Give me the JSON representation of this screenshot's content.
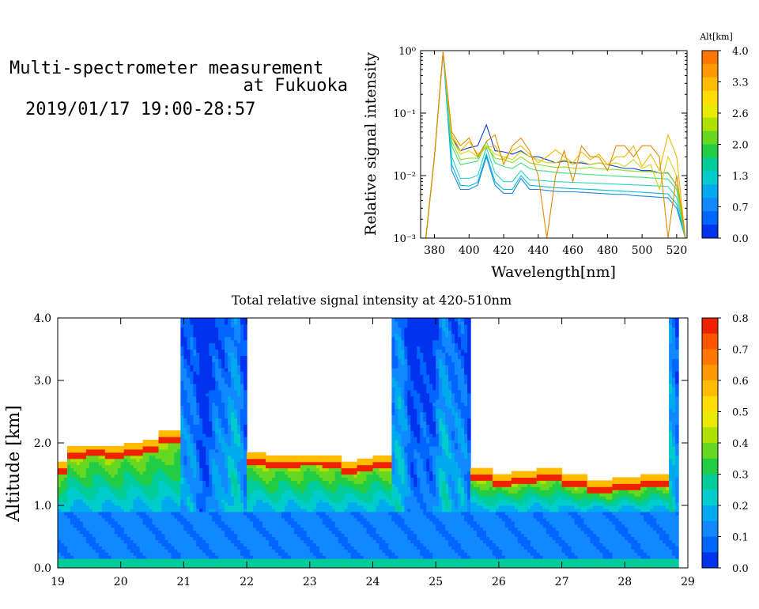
{
  "header": {
    "title_line1": "Multi-spectrometer measurement",
    "title_line2": "at Fukuoka",
    "period": "2019/01/17 19:00-28:57"
  },
  "chart_data": [
    {
      "type": "line",
      "title": "",
      "xlabel": "Wavelength[nm]",
      "ylabel": "Relative signal intensity",
      "yscale": "log",
      "xlim": [
        372,
        526
      ],
      "ylim": [
        0.001,
        1
      ],
      "xticks": [
        "380",
        "400",
        "420",
        "440",
        "460",
        "480",
        "500",
        "520"
      ],
      "yticks": [
        "10⁻³",
        "10⁻²",
        "10⁻¹",
        "10⁰"
      ],
      "x": [
        375,
        380,
        385,
        390,
        395,
        400,
        405,
        410,
        415,
        420,
        425,
        430,
        435,
        440,
        445,
        450,
        455,
        460,
        465,
        470,
        475,
        480,
        485,
        490,
        495,
        500,
        505,
        510,
        515,
        520,
        525
      ],
      "series": [
        {
          "color": "#0a3ad8",
          "values": [
            0.001,
            0.02,
            0.95,
            0.04,
            0.025,
            0.028,
            0.03,
            0.065,
            0.025,
            0.024,
            0.022,
            0.025,
            0.02,
            0.02,
            0.018,
            0.016,
            0.017,
            0.016,
            0.016,
            0.015,
            0.016,
            0.015,
            0.014,
            0.013,
            0.013,
            0.012,
            0.012,
            0.011,
            0.011,
            0.007,
            0.001
          ]
        },
        {
          "color": "#1e88e5",
          "values": [
            0.001,
            0.02,
            0.95,
            0.012,
            0.006,
            0.006,
            0.007,
            0.02,
            0.007,
            0.0052,
            0.0052,
            0.009,
            0.006,
            0.006,
            0.0058,
            0.0056,
            0.0055,
            0.0055,
            0.0054,
            0.0053,
            0.0052,
            0.0051,
            0.005,
            0.005,
            0.0048,
            0.0047,
            0.0046,
            0.0045,
            0.0044,
            0.003,
            0.001
          ]
        },
        {
          "color": "#00bcd4",
          "values": [
            0.001,
            0.02,
            0.95,
            0.015,
            0.007,
            0.0068,
            0.0078,
            0.022,
            0.008,
            0.006,
            0.006,
            0.01,
            0.007,
            0.0068,
            0.0066,
            0.0064,
            0.0063,
            0.0062,
            0.0061,
            0.006,
            0.0059,
            0.0058,
            0.0057,
            0.0056,
            0.0055,
            0.0054,
            0.0053,
            0.0052,
            0.0051,
            0.0035,
            0.001
          ]
        },
        {
          "color": "#26d7c8",
          "values": [
            0.001,
            0.02,
            0.95,
            0.02,
            0.009,
            0.009,
            0.01,
            0.028,
            0.011,
            0.008,
            0.008,
            0.012,
            0.0085,
            0.0084,
            0.0082,
            0.008,
            0.0079,
            0.0078,
            0.0077,
            0.0076,
            0.0075,
            0.0074,
            0.0073,
            0.0072,
            0.0071,
            0.007,
            0.0069,
            0.0068,
            0.0067,
            0.0045,
            0.001
          ]
        },
        {
          "color": "#3fe07a",
          "values": [
            0.001,
            0.02,
            0.95,
            0.03,
            0.015,
            0.016,
            0.017,
            0.035,
            0.016,
            0.014,
            0.013,
            0.016,
            0.013,
            0.012,
            0.0118,
            0.0112,
            0.011,
            0.0108,
            0.0106,
            0.0104,
            0.0102,
            0.01,
            0.0098,
            0.0096,
            0.0095,
            0.0094,
            0.0092,
            0.009,
            0.0088,
            0.006,
            0.001
          ]
        },
        {
          "color": "#8bdd1e",
          "values": [
            0.001,
            0.02,
            0.95,
            0.035,
            0.018,
            0.019,
            0.019,
            0.03,
            0.019,
            0.018,
            0.016,
            0.02,
            0.016,
            0.015,
            0.0142,
            0.0135,
            0.0138,
            0.0132,
            0.013,
            0.0135,
            0.0128,
            0.0126,
            0.0125,
            0.012,
            0.0118,
            0.0116,
            0.0115,
            0.011,
            0.0112,
            0.007,
            0.001
          ]
        },
        {
          "color": "#d4d416",
          "values": [
            0.001,
            0.02,
            0.95,
            0.04,
            0.022,
            0.025,
            0.02,
            0.03,
            0.022,
            0.02,
            0.018,
            0.024,
            0.02,
            0.018,
            0.016,
            0.016,
            0.018,
            0.015,
            0.017,
            0.015,
            0.016,
            0.015,
            0.016,
            0.014,
            0.018,
            0.013,
            0.015,
            0.006,
            0.02,
            0.01,
            0.001
          ]
        },
        {
          "color": "#f0b800",
          "values": [
            0.001,
            0.02,
            0.95,
            0.045,
            0.025,
            0.035,
            0.022,
            0.028,
            0.03,
            0.018,
            0.025,
            0.03,
            0.022,
            0.016,
            0.02,
            0.026,
            0.02,
            0.016,
            0.024,
            0.018,
            0.022,
            0.015,
            0.02,
            0.02,
            0.03,
            0.014,
            0.022,
            0.012,
            0.045,
            0.02,
            0.001
          ]
        },
        {
          "color": "#e08a00",
          "values": [
            0.001,
            0.02,
            0.95,
            0.05,
            0.03,
            0.04,
            0.02,
            0.035,
            0.045,
            0.015,
            0.03,
            0.04,
            0.025,
            0.01,
            0.001,
            0.01,
            0.025,
            0.008,
            0.03,
            0.02,
            0.02,
            0.012,
            0.03,
            0.03,
            0.02,
            0.03,
            0.03,
            0.02,
            0.001,
            0.01,
            0.001
          ]
        }
      ],
      "colorbar": {
        "label": "Alt[km]",
        "ticks": [
          "4.0",
          "3.3",
          "2.6",
          "2.0",
          "1.3",
          "0.7",
          "0.0"
        ],
        "colors": [
          "#ff7700",
          "#ff9900",
          "#ffbb00",
          "#ffdd00",
          "#eaea00",
          "#b0e000",
          "#66d822",
          "#22cc44",
          "#00cc99",
          "#00cccc",
          "#00aaee",
          "#1188ff",
          "#0066ff",
          "#0033ee"
        ]
      }
    },
    {
      "type": "heatmap",
      "title": "Total relative signal intensity at 420-510nm",
      "xlabel": "",
      "ylabel": "Altitude [km]",
      "xlim": [
        19,
        29
      ],
      "ylim": [
        0,
        4
      ],
      "xticks": [
        "19",
        "20",
        "21",
        "22",
        "23",
        "24",
        "25",
        "26",
        "27",
        "28",
        "29"
      ],
      "yticks": [
        "0.0",
        "1.0",
        "2.0",
        "3.0",
        "4.0"
      ],
      "data_end_hour": 28.82,
      "cloud_base_km": [
        [
          19.0,
          1.5
        ],
        [
          19.3,
          1.75
        ],
        [
          19.6,
          1.78
        ],
        [
          19.9,
          1.75
        ],
        [
          20.2,
          1.8
        ],
        [
          20.5,
          1.85
        ],
        [
          20.7,
          2.0
        ],
        [
          22.2,
          1.65
        ],
        [
          22.4,
          1.6
        ],
        [
          22.7,
          1.6
        ],
        [
          22.95,
          1.62
        ],
        [
          23.4,
          1.6
        ],
        [
          23.6,
          1.5
        ],
        [
          23.9,
          1.55
        ],
        [
          24.05,
          1.6
        ],
        [
          25.75,
          1.4
        ],
        [
          26.0,
          1.3
        ],
        [
          26.4,
          1.35
        ],
        [
          26.8,
          1.4
        ],
        [
          27.2,
          1.3
        ],
        [
          27.6,
          1.2
        ],
        [
          28.0,
          1.25
        ],
        [
          28.45,
          1.3
        ]
      ],
      "colorbar": {
        "ticks": [
          "0.8",
          "0.7",
          "0.6",
          "0.5",
          "0.4",
          "0.3",
          "0.2",
          "0.1",
          "0.0"
        ],
        "range": [
          0,
          0.8
        ],
        "colors": [
          "#0033ee",
          "#0066ff",
          "#1188ff",
          "#00aaee",
          "#00cccc",
          "#00cc99",
          "#22cc44",
          "#66d822",
          "#b0e000",
          "#eaea00",
          "#ffdd00",
          "#ffbb00",
          "#ff9900",
          "#ff7700",
          "#ff5500",
          "#ee2200"
        ]
      }
    }
  ]
}
